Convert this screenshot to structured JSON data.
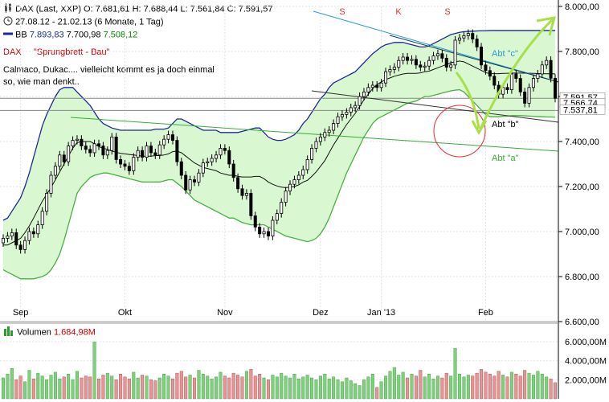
{
  "header": {
    "line1": {
      "symbol": "DAX (Last, XXP)",
      "open": "O: 7.681,61",
      "high": "H: 7.688,44",
      "low": "L: 7.561,84",
      "close": "C: 7.591,57"
    },
    "line2": "27.08.12 - 21.02.13 (6 Monate, 1 Tag)",
    "bb": {
      "label": "BB",
      "upper": "7.893,83",
      "middle": "7.700,98",
      "lower": "7.508,12"
    },
    "note_title": {
      "left": "DAX",
      "right": "\"Sprungbrett - Bau\""
    },
    "note_body": [
      "Calmaco, Dukac.... vielleicht kommt es ja doch einmal",
      "so, wie man denkt.."
    ]
  },
  "colors": {
    "bb_line": "#1a2a9a",
    "bb_fill": "#d9f7d0",
    "band_edge": "#48b040",
    "up_candle": "#2c9a2c",
    "down_candle": "#cc2222",
    "sma": "#111111",
    "annot_green": "#a8e04a",
    "trend_a": "#3aaa3a",
    "trend_b": "#333333",
    "trend_c": "#2a9ad0",
    "circle": "#e03030",
    "vol_up": "#7fcf7f",
    "vol_down": "#e59595"
  },
  "volume": {
    "label": "Volumen",
    "value": "1.684,98M"
  },
  "annotations": {
    "shoulder_labels": [
      "S",
      "K",
      "S"
    ],
    "abt_a": "Abt \"a\"",
    "abt_b": "Abt \"b\"",
    "abt_c": "Abt \"c\""
  },
  "price_labels": [
    "7.591,57",
    "7.566,74",
    "7.537,81"
  ],
  "chart_data": {
    "type": "candlestick",
    "title": "DAX (Last, XXP)",
    "x_tick_labels": [
      "Sep",
      "Okt",
      "Nov",
      "Dez",
      "Jan '13",
      "Feb"
    ],
    "x_tick_index": [
      4,
      28,
      51,
      73,
      87,
      111
    ],
    "y_tick_labels": [
      "8.000,00",
      "7.800,00",
      "7.600,00",
      "7.400,00",
      "7.200,00",
      "7.000,00",
      "6.800,00",
      "6.600,00"
    ],
    "y_ticks": [
      8000,
      7800,
      7600,
      7400,
      7200,
      7000,
      6800,
      6600
    ],
    "ylim": [
      6600,
      8000
    ],
    "close": [
      6970,
      6980,
      6995,
      6940,
      6920,
      6960,
      7000,
      6990,
      7030,
      7090,
      7170,
      7250,
      7290,
      7340,
      7310,
      7380,
      7405,
      7410,
      7380,
      7365,
      7350,
      7390,
      7380,
      7340,
      7360,
      7420,
      7320,
      7300,
      7290,
      7270,
      7330,
      7360,
      7330,
      7380,
      7350,
      7340,
      7385,
      7410,
      7430,
      7405,
      7310,
      7250,
      7185,
      7230,
      7220,
      7260,
      7305,
      7310,
      7325,
      7340,
      7370,
      7360,
      7300,
      7240,
      7190,
      7160,
      7170,
      7070,
      7020,
      6990,
      7000,
      6980,
      7050,
      7080,
      7130,
      7180,
      7210,
      7230,
      7250,
      7275,
      7320,
      7370,
      7400,
      7420,
      7440,
      7450,
      7480,
      7510,
      7520,
      7530,
      7550,
      7560,
      7600,
      7620,
      7640,
      7650,
      7640,
      7660,
      7710,
      7720,
      7730,
      7760,
      7775,
      7760,
      7765,
      7740,
      7730,
      7735,
      7760,
      7780,
      7790,
      7770,
      7730,
      7740,
      7850,
      7860,
      7870,
      7880,
      7855,
      7820,
      7740,
      7715,
      7690,
      7650,
      7610,
      7640,
      7630,
      7700,
      7680,
      7620,
      7570,
      7640,
      7680,
      7700,
      7740,
      7760,
      7681,
      7592
    ],
    "bb_upper": [
      7050,
      7060,
      7090,
      7120,
      7150,
      7200,
      7260,
      7330,
      7400,
      7470,
      7520,
      7560,
      7600,
      7630,
      7640,
      7640,
      7640,
      7620,
      7600,
      7580,
      7560,
      7530,
      7500,
      7480,
      7470,
      7460,
      7455,
      7450,
      7450,
      7450,
      7450,
      7450,
      7450,
      7450,
      7450,
      7455,
      7455,
      7455,
      7460,
      7480,
      7500,
      7500,
      7490,
      7480,
      7470,
      7460,
      7450,
      7450,
      7450,
      7450,
      7440,
      7440,
      7440,
      7440,
      7440,
      7445,
      7450,
      7455,
      7460,
      7460,
      7440,
      7420,
      7410,
      7405,
      7405,
      7410,
      7420,
      7430,
      7450,
      7480,
      7500,
      7530,
      7560,
      7590,
      7610,
      7640,
      7660,
      7670,
      7680,
      7690,
      7700,
      7710,
      7730,
      7750,
      7770,
      7790,
      7805,
      7820,
      7830,
      7835,
      7840,
      7840,
      7840,
      7835,
      7830,
      7825,
      7820,
      7820,
      7825,
      7835,
      7845,
      7855,
      7865,
      7875,
      7880,
      7885,
      7888,
      7889,
      7890,
      7891,
      7892,
      7892,
      7893,
      7893,
      7893,
      7893,
      7893,
      7893,
      7893,
      7893,
      7893,
      7893,
      7893,
      7893,
      7893,
      7893,
      7893,
      7893
    ],
    "bb_lower": [
      6830,
      6820,
      6810,
      6800,
      6790,
      6790,
      6790,
      6790,
      6795,
      6800,
      6810,
      6830,
      6860,
      6900,
      6960,
      7030,
      7100,
      7170,
      7200,
      7220,
      7240,
      7250,
      7255,
      7260,
      7260,
      7255,
      7250,
      7245,
      7240,
      7235,
      7230,
      7225,
      7220,
      7220,
      7220,
      7220,
      7220,
      7225,
      7230,
      7230,
      7215,
      7200,
      7180,
      7160,
      7140,
      7130,
      7120,
      7110,
      7100,
      7090,
      7080,
      7070,
      7060,
      7060,
      7050,
      7040,
      7035,
      7030,
      7030,
      7030,
      7030,
      7020,
      7010,
      7000,
      6990,
      6980,
      6975,
      6970,
      6965,
      6960,
      6955,
      6960,
      6970,
      6990,
      7020,
      7060,
      7110,
      7160,
      7210,
      7260,
      7300,
      7340,
      7380,
      7420,
      7450,
      7480,
      7500,
      7510,
      7520,
      7530,
      7540,
      7550,
      7560,
      7570,
      7575,
      7580,
      7590,
      7600,
      7600,
      7605,
      7610,
      7615,
      7620,
      7625,
      7628,
      7630,
      7620,
      7600,
      7580,
      7560,
      7540,
      7520,
      7510,
      7510,
      7510,
      7512,
      7513,
      7515,
      7515,
      7515,
      7514,
      7513,
      7512,
      7511,
      7510,
      7509,
      7509,
      7508
    ],
    "volume": [
      2.2,
      2.6,
      3.2,
      2.0,
      2.4,
      1.8,
      3.0,
      2.1,
      2.7,
      2.4,
      2.0,
      2.5,
      2.8,
      2.1,
      2.3,
      2.6,
      2.0,
      2.9,
      2.2,
      2.4,
      2.3,
      6.0,
      2.1,
      2.5,
      2.7,
      2.4,
      2.0,
      2.6,
      2.3,
      2.1,
      2.8,
      2.2,
      2.5,
      2.4,
      2.0,
      1.9,
      2.2,
      2.6,
      2.4,
      2.1,
      2.7,
      2.9,
      2.3,
      2.5,
      2.2,
      3.0,
      2.6,
      2.4,
      2.1,
      2.3,
      2.8,
      2.4,
      2.2,
      2.7,
      2.5,
      2.3,
      2.9,
      3.1,
      2.4,
      2.6,
      2.2,
      2.0,
      2.5,
      2.3,
      2.7,
      2.4,
      2.2,
      2.6,
      2.1,
      2.3,
      2.5,
      2.2,
      2.0,
      2.4,
      2.6,
      2.1,
      2.3,
      2.0,
      1.8,
      2.2,
      1.9,
      1.6,
      1.4,
      2.0,
      2.3,
      2.6,
      1.2,
      1.8,
      2.4,
      2.9,
      3.3,
      2.5,
      2.8,
      2.2,
      2.6,
      2.4,
      3.0,
      2.3,
      2.6,
      2.1,
      2.4,
      2.2,
      2.7,
      2.4,
      5.3,
      2.6,
      2.3,
      2.5,
      2.4,
      2.7,
      3.1,
      2.8,
      2.6,
      2.4,
      2.9,
      2.5,
      2.3,
      2.8,
      2.6,
      2.4,
      3.0,
      2.7,
      2.5,
      2.9,
      2.6,
      2.3,
      2.1,
      1.7
    ],
    "volume_ticks": [
      6,
      4,
      2
    ],
    "volume_tick_labels": [
      "6.000,00M",
      "4.000,00M",
      "2.000,00M"
    ]
  }
}
